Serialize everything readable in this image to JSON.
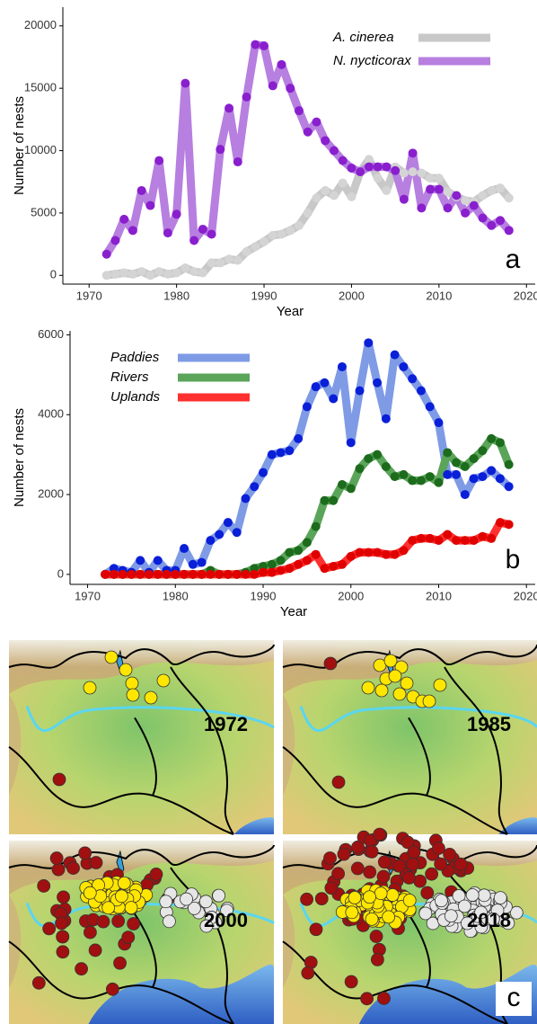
{
  "chart_data": [
    {
      "type": "line",
      "panel_label": "a",
      "x_label": "Year",
      "y_label": "Number of nests",
      "x": [
        1972,
        1973,
        1974,
        1975,
        1976,
        1977,
        1978,
        1979,
        1980,
        1981,
        1982,
        1983,
        1984,
        1985,
        1986,
        1987,
        1988,
        1989,
        1990,
        1991,
        1992,
        1993,
        1994,
        1995,
        1996,
        1997,
        1998,
        1999,
        2000,
        2001,
        2002,
        2003,
        2004,
        2005,
        2006,
        2007,
        2008,
        2009,
        2010,
        2011,
        2012,
        2013,
        2014,
        2015,
        2016,
        2017,
        2018
      ],
      "xlim": [
        1967,
        2021
      ],
      "xticks": [
        1970,
        1980,
        1990,
        2000,
        2010,
        2020
      ],
      "ylim": [
        -700,
        21500
      ],
      "yticks": [
        0,
        5000,
        10000,
        15000,
        20000
      ],
      "legend": "top-right",
      "series": [
        {
          "name": "A. cinerea",
          "color": "#c8c8c8",
          "marker_color": "#d4d4d4",
          "values": [
            0,
            100,
            200,
            100,
            300,
            0,
            300,
            100,
            200,
            600,
            300,
            200,
            1000,
            1000,
            1300,
            1200,
            1900,
            2300,
            2700,
            3200,
            3300,
            3600,
            4000,
            5000,
            6200,
            6800,
            6400,
            7400,
            6300,
            8300,
            9300,
            7800,
            6800,
            8700,
            8200,
            8300,
            8200,
            7800,
            7800,
            6700,
            6300,
            6000,
            5900,
            6400,
            6800,
            7000,
            6200
          ]
        },
        {
          "name": "N. nycticorax",
          "color": "#b77fe0",
          "marker_color": "#8a1fce",
          "values": [
            1700,
            2800,
            4500,
            3600,
            6800,
            5600,
            9200,
            3400,
            4900,
            15400,
            2800,
            3700,
            3300,
            10100,
            13400,
            9100,
            14300,
            18500,
            18400,
            15200,
            16900,
            15000,
            13200,
            11500,
            12300,
            10800,
            10000,
            9200,
            8600,
            8300,
            8700,
            8700,
            8700,
            8400,
            6100,
            9800,
            5400,
            6900,
            6900,
            5400,
            6400,
            5000,
            5600,
            4600,
            4000,
            4400,
            3600
          ]
        }
      ]
    },
    {
      "type": "line",
      "panel_label": "b",
      "x_label": "Year",
      "y_label": "Number of nests",
      "x": [
        1972,
        1973,
        1974,
        1975,
        1976,
        1977,
        1978,
        1979,
        1980,
        1981,
        1982,
        1983,
        1984,
        1985,
        1986,
        1987,
        1988,
        1989,
        1990,
        1991,
        1992,
        1993,
        1994,
        1995,
        1996,
        1997,
        1998,
        1999,
        2000,
        2001,
        2002,
        2003,
        2004,
        2005,
        2006,
        2007,
        2008,
        2009,
        2010,
        2011,
        2012,
        2013,
        2014,
        2015,
        2016,
        2017,
        2018
      ],
      "xlim": [
        1968,
        2021
      ],
      "xticks": [
        1970,
        1980,
        1990,
        2000,
        2010,
        2020
      ],
      "ylim": [
        -250,
        6100
      ],
      "yticks": [
        0,
        2000,
        4000,
        6000
      ],
      "legend": "top-left",
      "series": [
        {
          "name": "Paddies",
          "color": "#7f9be6",
          "marker_color": "#0a1fd8",
          "values": [
            0,
            150,
            100,
            50,
            350,
            50,
            350,
            100,
            100,
            650,
            250,
            300,
            850,
            1000,
            1300,
            1050,
            1900,
            2200,
            2550,
            3000,
            3050,
            3100,
            3400,
            4200,
            4700,
            4800,
            4400,
            5200,
            3300,
            4600,
            5800,
            4800,
            3900,
            5500,
            5200,
            4900,
            4600,
            4200,
            3800,
            2500,
            2500,
            2000,
            2400,
            2450,
            2600,
            2400,
            2200
          ]
        },
        {
          "name": "Rivers",
          "color": "#5aa55a",
          "marker_color": "#1d6b1d",
          "values": [
            0,
            0,
            0,
            0,
            0,
            0,
            0,
            0,
            0,
            0,
            0,
            0,
            100,
            0,
            0,
            0,
            50,
            150,
            200,
            250,
            350,
            550,
            600,
            800,
            1200,
            1850,
            1850,
            2250,
            2150,
            2650,
            2900,
            3000,
            2700,
            2450,
            2500,
            2350,
            2350,
            2450,
            2300,
            3050,
            2800,
            2700,
            2900,
            3100,
            3400,
            3300,
            2750
          ]
        },
        {
          "name": "Uplands",
          "color": "#ff3030",
          "marker_color": "#e00000",
          "values": [
            0,
            0,
            0,
            0,
            0,
            0,
            0,
            0,
            0,
            0,
            0,
            0,
            0,
            0,
            0,
            0,
            0,
            0,
            50,
            50,
            100,
            150,
            250,
            350,
            500,
            150,
            200,
            250,
            450,
            550,
            550,
            550,
            500,
            500,
            600,
            850,
            900,
            900,
            850,
            1000,
            850,
            850,
            850,
            950,
            900,
            1300,
            1250
          ]
        }
      ]
    }
  ],
  "maps": {
    "panel_label": "c",
    "panels": [
      {
        "year": "1972"
      },
      {
        "year": "1985"
      },
      {
        "year": "2000"
      },
      {
        "year": "2018"
      }
    ]
  }
}
